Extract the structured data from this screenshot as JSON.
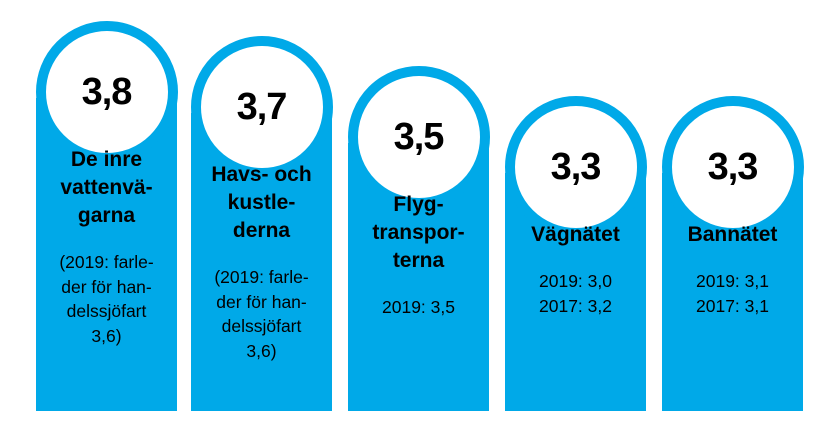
{
  "colors": {
    "bar": "#00a9e8",
    "bubble_fill": "#ffffff",
    "text": "#000000"
  },
  "chart_data": {
    "type": "bar",
    "title": "",
    "xlabel": "",
    "ylabel": "",
    "ylim": [
      0,
      4
    ],
    "categories": [
      "De inre vattenvägarna",
      "Havs- och kustlederna",
      "Flygtransporterna",
      "Vägnätet",
      "Bannätet"
    ],
    "values": [
      3.8,
      3.7,
      3.5,
      3.3,
      3.3
    ],
    "value_labels": [
      "3,8",
      "3,7",
      "3,5",
      "3,3",
      "3,3"
    ],
    "category_lines": [
      [
        "De inre",
        "vattenvä-",
        "garna"
      ],
      [
        "Havs- och",
        "kustle-",
        "derna"
      ],
      [
        "Flyg-",
        "transpor-",
        "terna"
      ],
      [
        "Vägnätet"
      ],
      [
        "Bannätet"
      ]
    ],
    "notes": [
      [
        "(2019: farle-",
        "der för han-",
        "delssjöfart",
        "3,6)"
      ],
      [
        "(2019: farle-",
        "der för han-",
        "delssjöfart",
        "3,6)"
      ],
      [
        "2019: 3,5"
      ],
      [
        "2019: 3,0",
        "2017: 3,2"
      ],
      [
        "2019: 3,1",
        "2017: 3,1"
      ]
    ]
  }
}
